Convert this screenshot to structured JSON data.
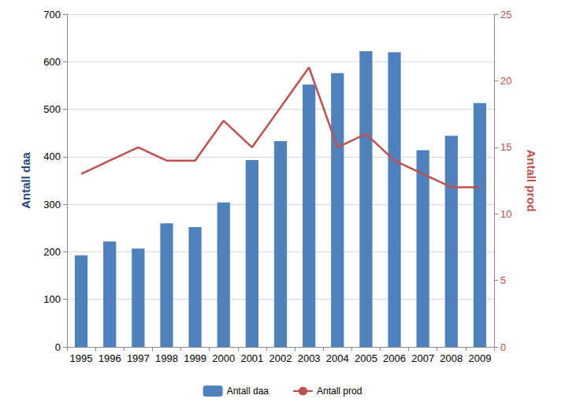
{
  "chart_data": {
    "type": "bar",
    "categories": [
      "1995",
      "1996",
      "1997",
      "1998",
      "1999",
      "2000",
      "2001",
      "2002",
      "2003",
      "2004",
      "2005",
      "2006",
      "2007",
      "2008",
      "2009"
    ],
    "y_label": "Antall daa",
    "y2_label": "Antall prod",
    "ylim": [
      0,
      700
    ],
    "yticks": [
      0,
      100,
      200,
      300,
      400,
      500,
      600,
      700
    ],
    "y2lim": [
      0,
      25
    ],
    "y2ticks": [
      0,
      5,
      10,
      15,
      20,
      25
    ],
    "grid": true,
    "legend": "bottom",
    "series": [
      {
        "name": "Antall daa",
        "type": "bar",
        "color": "#4f81bd",
        "values": [
          193,
          222,
          207,
          260,
          252,
          304,
          393,
          433,
          552,
          576,
          622,
          620,
          414,
          444,
          513
        ]
      },
      {
        "name": "Antall prod",
        "type": "line",
        "axis": "y2",
        "color": "#c0504d",
        "marker": "none",
        "values": [
          13,
          14,
          15,
          14,
          14,
          17,
          15,
          18,
          21,
          15,
          16,
          14,
          13,
          12,
          12
        ]
      }
    ]
  }
}
